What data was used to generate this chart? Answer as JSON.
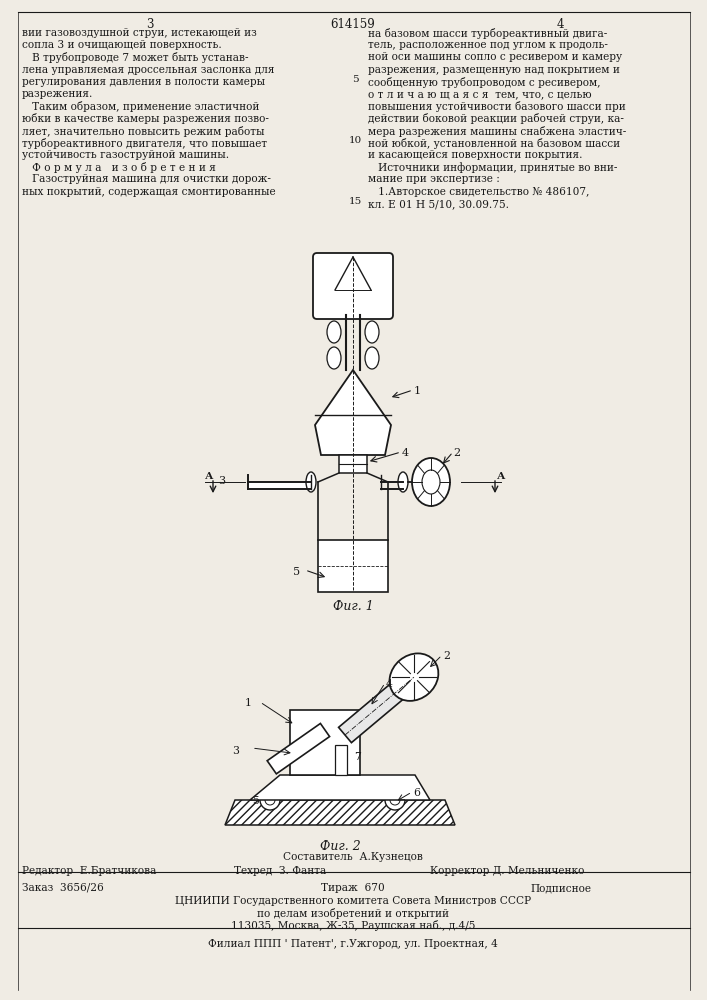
{
  "patent_number": "614159",
  "page_left": "3",
  "page_right": "4",
  "bg_color": "#f0ece4",
  "text_color": "#1a1a1a",
  "left_column_text": [
    "вии газовоздушной струи, истекающей из",
    "сопла 3 и очищающей поверхность.",
    "   В трубопроводе 7 может быть устанав-",
    "лена управляемая дроссельная заслонка для",
    "регулирования давления в полости камеры",
    "разрежения.",
    "   Таким образом, применение эластичной",
    "юбки в качестве камеры разрежения позво-",
    "ляет, значительно повысить режим работы",
    "турбореактивного двигателя, что повышает",
    "устойчивость газоструйной машины.",
    "   Ф о р м у л а   и з о б р е т е н и я",
    "   Газоструйная машина для очистки дорож-",
    "ных покрытий, содержащая смонтированные"
  ],
  "right_column_text": [
    "на базовом шасси турбореактивный двига-",
    "тель, расположенное под углом к продоль-",
    "ной оси машины сопло с ресивером и камеру",
    "разрежения, размещенную над покрытием и",
    "сообщенную трубопроводом с ресивером,",
    "о т л и ч а ю щ а я с я  тем, что, с целью",
    "повышения устойчивости базового шасси при",
    "действии боковой реакции рабочей струи, ка-",
    "мера разрежения машины снабжена эластич-",
    "ной юбкой, установленной на базовом шасси",
    "и касающейся поверхности покрытия.",
    "   Источники информации, принятые во вни-",
    "мание при экспертизе :",
    "   1.Авторское свидетельство № 486107,",
    "кл. Е 01 Н 5/10, 30.09.75."
  ],
  "fig1_label": "Фиг. 1",
  "fig2_label": "Фиг. 2",
  "footer_compiler": "Составитель  А.Кузнецов",
  "footer_editor": "Редактор  Е.Братчикова",
  "footer_tech": "Техред  З. Фанта",
  "footer_corrector": "Корректор Д. Мельниченко",
  "footer_order": "Заказ  3656/26",
  "footer_print": "Тираж  670",
  "footer_sign": "Подписное",
  "footer_org": "ЦНИИПИ Государственного комитета Совета Министров СССР",
  "footer_dept": "по делам изобретений и открытий",
  "footer_addr": "113035, Москва, Ж-35, Раушская наб., д.4/5",
  "footer_branch": "Филиал ППП ' Патент', г.Ужгород, ул. Проектная, 4"
}
